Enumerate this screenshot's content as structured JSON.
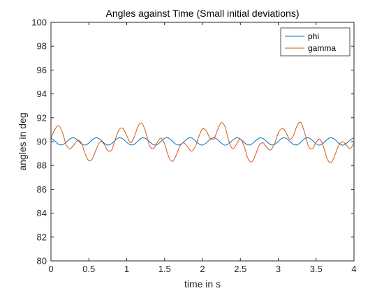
{
  "chart_data": {
    "type": "line",
    "title": "Angles against Time (Small initial deviations)",
    "xlabel": "time in s",
    "ylabel": "angles in deg",
    "xlim": [
      0,
      4
    ],
    "ylim": [
      80,
      100
    ],
    "xticks": [
      0,
      0.5,
      1,
      1.5,
      2,
      2.5,
      3,
      3.5,
      4
    ],
    "xtick_labels": [
      "0",
      "0.5",
      "1",
      "1.5",
      "2",
      "2.5",
      "3",
      "3.5",
      "4"
    ],
    "yticks": [
      80,
      82,
      84,
      86,
      88,
      90,
      92,
      94,
      96,
      98,
      100
    ],
    "ytick_labels": [
      "80",
      "82",
      "84",
      "86",
      "88",
      "90",
      "92",
      "94",
      "96",
      "98",
      "100"
    ],
    "grid": false,
    "legend_position": "top-right",
    "series": [
      {
        "name": "phi",
        "color": "#0072BD",
        "x": [
          0,
          0.05,
          0.1,
          0.15,
          0.2,
          0.25,
          0.3,
          0.35,
          0.4,
          0.45,
          0.5,
          0.55,
          0.6,
          0.65,
          0.7,
          0.75,
          0.8,
          0.85,
          0.9,
          0.95,
          1,
          1.05,
          1.1,
          1.15,
          1.2,
          1.25,
          1.3,
          1.35,
          1.4,
          1.45,
          1.5,
          1.55,
          1.6,
          1.65,
          1.7,
          1.75,
          1.8,
          1.85,
          1.9,
          1.95,
          2,
          2.05,
          2.1,
          2.15,
          2.2,
          2.25,
          2.3,
          2.35,
          2.4,
          2.45,
          2.5,
          2.55,
          2.6,
          2.65,
          2.7,
          2.75,
          2.8,
          2.85,
          2.9,
          2.95,
          3,
          3.05,
          3.1,
          3.15,
          3.2,
          3.25,
          3.3,
          3.35,
          3.4,
          3.45,
          3.5,
          3.55,
          3.6,
          3.65,
          3.7,
          3.75,
          3.8,
          3.85,
          3.9,
          3.95,
          4
        ],
        "y": [
          90.3,
          90.06,
          89.78,
          89.73,
          89.94,
          90.23,
          90.32,
          90.12,
          89.83,
          89.71,
          89.88,
          90.18,
          90.33,
          90.18,
          89.88,
          89.71,
          89.83,
          90.12,
          90.32,
          90.23,
          89.94,
          89.73,
          89.78,
          90.06,
          90.3,
          90.27,
          90.0,
          89.75,
          89.75,
          90.0,
          90.28,
          90.3,
          90.05,
          89.78,
          89.73,
          89.95,
          90.24,
          90.32,
          90.11,
          89.82,
          89.71,
          89.89,
          90.19,
          90.33,
          90.17,
          89.86,
          89.7,
          89.84,
          90.13,
          90.32,
          90.22,
          89.93,
          89.72,
          89.79,
          90.07,
          90.3,
          90.26,
          89.99,
          89.74,
          89.76,
          90.01,
          90.28,
          90.29,
          90.04,
          89.77,
          89.73,
          89.96,
          90.25,
          90.32,
          90.1,
          89.81,
          89.71,
          89.9,
          90.2,
          90.33,
          90.16,
          89.85,
          89.7,
          89.85,
          90.14,
          90.32
        ]
      },
      {
        "name": "gamma",
        "color": "#D95319",
        "x": [
          0,
          0.05,
          0.1,
          0.15,
          0.2,
          0.25,
          0.3,
          0.35,
          0.4,
          0.45,
          0.5,
          0.55,
          0.6,
          0.65,
          0.7,
          0.75,
          0.8,
          0.85,
          0.9,
          0.95,
          1,
          1.05,
          1.1,
          1.15,
          1.2,
          1.25,
          1.3,
          1.35,
          1.4,
          1.45,
          1.5,
          1.55,
          1.6,
          1.65,
          1.7,
          1.75,
          1.8,
          1.85,
          1.9,
          1.95,
          2,
          2.05,
          2.1,
          2.15,
          2.2,
          2.25,
          2.3,
          2.35,
          2.4,
          2.45,
          2.5,
          2.55,
          2.6,
          2.65,
          2.7,
          2.75,
          2.8,
          2.85,
          2.9,
          2.95,
          3,
          3.05,
          3.1,
          3.15,
          3.2,
          3.25,
          3.3,
          3.35,
          3.4,
          3.45,
          3.5,
          3.55,
          3.6,
          3.65,
          3.7,
          3.75,
          3.8,
          3.85,
          3.9,
          3.95,
          4
        ],
        "y": [
          90.3,
          91.0,
          91.35,
          90.8,
          89.75,
          89.4,
          89.7,
          90.1,
          89.9,
          89.0,
          88.4,
          88.6,
          89.4,
          90.0,
          89.8,
          89.25,
          89.3,
          90.2,
          91.0,
          91.1,
          90.5,
          89.9,
          90.4,
          91.3,
          91.55,
          90.8,
          89.7,
          89.4,
          89.9,
          90.3,
          89.8,
          88.8,
          88.35,
          88.8,
          89.6,
          89.9,
          89.6,
          89.2,
          89.5,
          90.4,
          91.05,
          90.9,
          90.3,
          90.2,
          91.0,
          91.6,
          91.2,
          90.0,
          89.4,
          89.8,
          90.2,
          89.6,
          88.6,
          88.3,
          88.9,
          89.7,
          89.9,
          89.5,
          89.3,
          89.8,
          90.7,
          91.1,
          90.8,
          90.2,
          90.5,
          91.35,
          91.6,
          90.7,
          89.6,
          89.4,
          89.95,
          90.2,
          89.5,
          88.5,
          88.25,
          88.9,
          89.7,
          90.0,
          89.7,
          89.4,
          89.9
        ]
      }
    ]
  }
}
